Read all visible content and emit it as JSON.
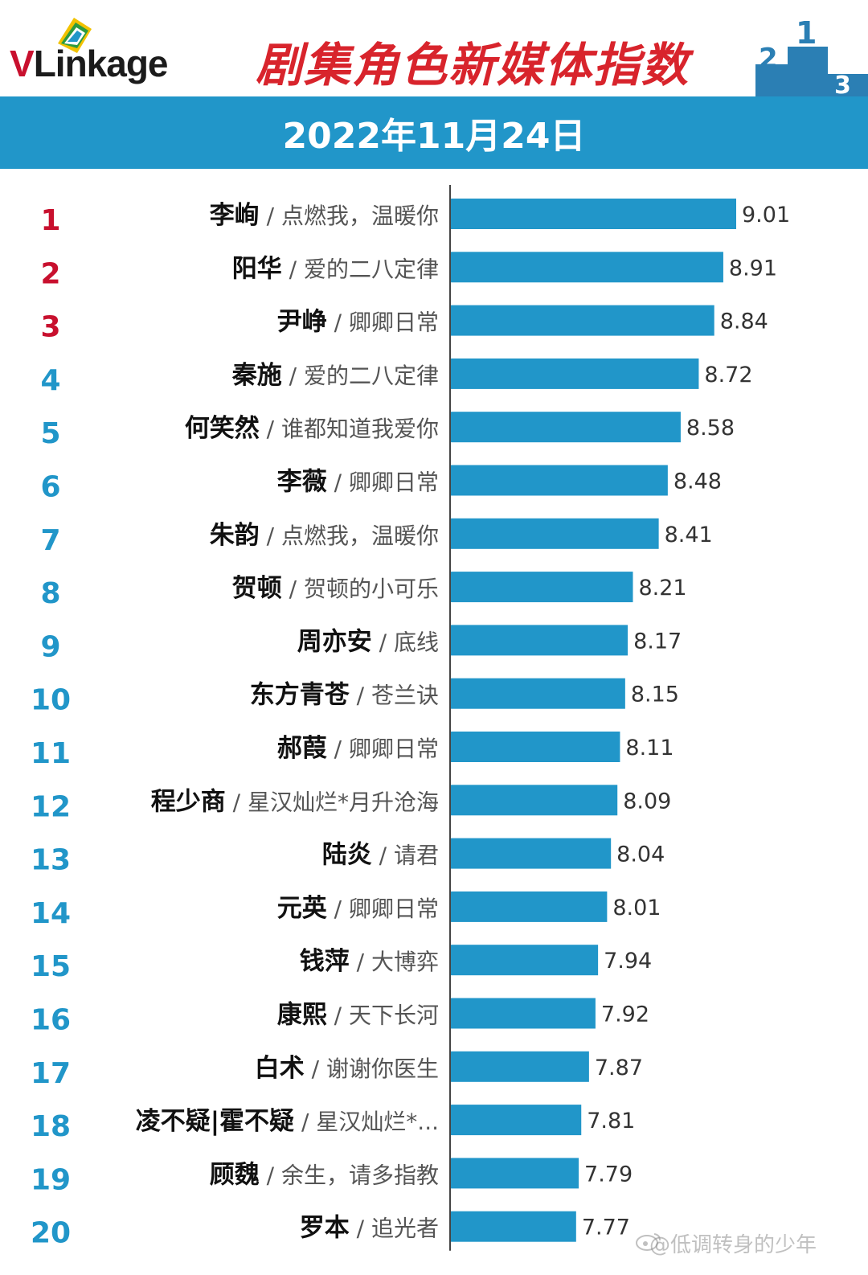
{
  "header": {
    "logo_v": "V",
    "logo_rest": "Linkage",
    "title": "剧集角色新媒体指数",
    "date": "2022年11月24日"
  },
  "watermark": "@低调转身的少年",
  "colors": {
    "bar": "#2196c9",
    "top3_rank": "#c8102e",
    "rank": "#2196c9",
    "title": "#d8242c",
    "band": "#2196c9"
  },
  "chart_data": {
    "type": "bar",
    "orientation": "horizontal",
    "title": "剧集角色新媒体指数",
    "subtitle": "2022年11月24日",
    "xlabel": "",
    "ylabel": "",
    "grid": false,
    "legend": "none",
    "xlim": [
      6.8,
      9.3
    ],
    "rows": [
      {
        "rank": "1",
        "name": "李峋",
        "drama": "点燃我，温暖你",
        "value": 9.01
      },
      {
        "rank": "2",
        "name": "阳华",
        "drama": "爱的二八定律",
        "value": 8.91
      },
      {
        "rank": "3",
        "name": "尹峥",
        "drama": "卿卿日常",
        "value": 8.84
      },
      {
        "rank": "4",
        "name": "秦施",
        "drama": "爱的二八定律",
        "value": 8.72
      },
      {
        "rank": "5",
        "name": "何笑然",
        "drama": "谁都知道我爱你",
        "value": 8.58
      },
      {
        "rank": "6",
        "name": "李薇",
        "drama": "卿卿日常",
        "value": 8.48
      },
      {
        "rank": "7",
        "name": "朱韵",
        "drama": "点燃我，温暖你",
        "value": 8.41
      },
      {
        "rank": "8",
        "name": "贺顿",
        "drama": "贺顿的小可乐",
        "value": 8.21
      },
      {
        "rank": "9",
        "name": "周亦安",
        "drama": "底线",
        "value": 8.17
      },
      {
        "rank": "10",
        "name": "东方青苍",
        "drama": "苍兰诀",
        "value": 8.15
      },
      {
        "rank": "11",
        "name": "郝葭",
        "drama": "卿卿日常",
        "value": 8.11
      },
      {
        "rank": "12",
        "name": "程少商",
        "drama": "星汉灿烂*月升沧海",
        "value": 8.09
      },
      {
        "rank": "13",
        "name": "陆炎",
        "drama": "请君",
        "value": 8.04
      },
      {
        "rank": "14",
        "name": "元英",
        "drama": "卿卿日常",
        "value": 8.01
      },
      {
        "rank": "15",
        "name": "钱萍",
        "drama": "大博弈",
        "value": 7.94
      },
      {
        "rank": "16",
        "name": "康熙",
        "drama": "天下长河",
        "value": 7.92
      },
      {
        "rank": "17",
        "name": "白术",
        "drama": "谢谢你医生",
        "value": 7.87
      },
      {
        "rank": "18",
        "name": "凌不疑|霍不疑",
        "drama": "星汉灿烂*...",
        "value": 7.81
      },
      {
        "rank": "19",
        "name": "顾魏",
        "drama": "余生，请多指教",
        "value": 7.79
      },
      {
        "rank": "20",
        "name": "罗本",
        "drama": "追光者",
        "value": 7.77
      }
    ]
  }
}
